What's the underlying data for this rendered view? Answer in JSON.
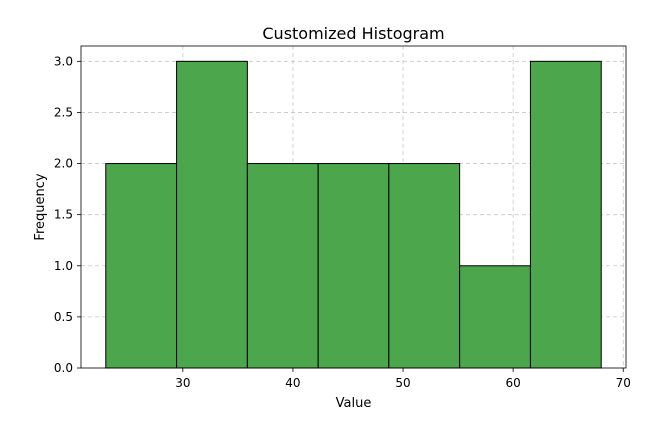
{
  "chart_data": {
    "type": "bar",
    "title": "Customized Histogram",
    "xlabel": "Value",
    "ylabel": "Frequency",
    "bins": [
      {
        "start": 23.0,
        "end": 29.43,
        "count": 2
      },
      {
        "start": 29.43,
        "end": 35.86,
        "count": 3
      },
      {
        "start": 35.86,
        "end": 42.29,
        "count": 2
      },
      {
        "start": 42.29,
        "end": 48.71,
        "count": 2
      },
      {
        "start": 48.71,
        "end": 55.14,
        "count": 2
      },
      {
        "start": 55.14,
        "end": 61.57,
        "count": 1
      },
      {
        "start": 61.57,
        "end": 68.0,
        "count": 3
      }
    ],
    "xlim": [
      20.75,
      70.25
    ],
    "ylim": [
      0,
      3.15
    ],
    "x_ticks": [
      30,
      40,
      50,
      60,
      70
    ],
    "x_tick_labels": [
      "30",
      "40",
      "50",
      "60",
      "70"
    ],
    "y_ticks": [
      0.0,
      0.5,
      1.0,
      1.5,
      2.0,
      2.5,
      3.0
    ],
    "y_tick_labels": [
      "0.0",
      "0.5",
      "1.0",
      "1.5",
      "2.0",
      "2.5",
      "3.0"
    ],
    "bar_color": "#4ca64c",
    "edge_color": "#000000",
    "grid": true,
    "legend": false
  }
}
